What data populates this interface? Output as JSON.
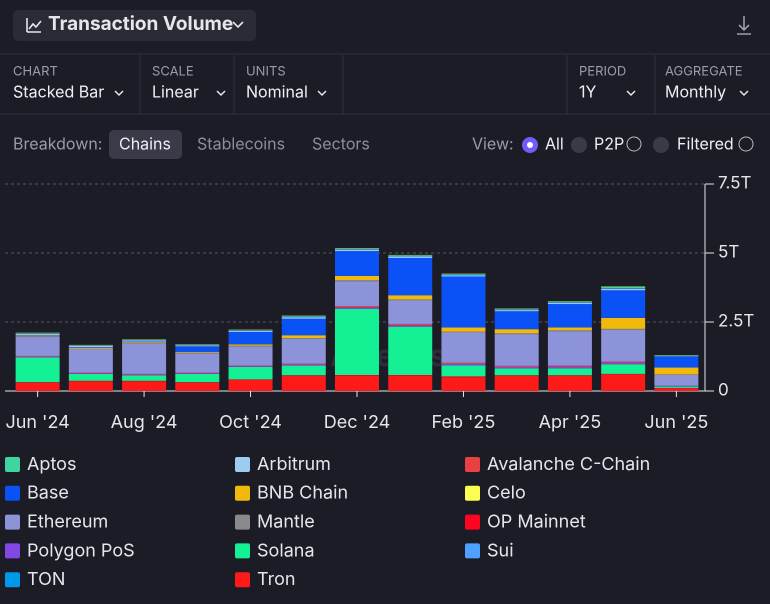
{
  "ui": {
    "title": "Transaction Volume",
    "controls": [
      {
        "label": "CHART",
        "value": "Stacked Bar"
      },
      {
        "label": "SCALE",
        "value": "Linear"
      },
      {
        "label": "UNITS",
        "value": "Nominal"
      },
      {
        "label": "PERIOD",
        "value": "1Y"
      },
      {
        "label": "AGGREGATE",
        "value": "Monthly"
      }
    ],
    "breakdown_label": "Breakdown:",
    "breakdown_tabs": [
      "Chains",
      "Stablecoins",
      "Sectors"
    ],
    "view_label": "View:",
    "view_options": [
      "All",
      "P2P",
      "Filtered"
    ],
    "watermark": "Artemis"
  },
  "chart_data": {
    "type": "stacked_bar",
    "categories": [
      "Jun '24",
      null,
      "Aug '24",
      null,
      "Oct '24",
      null,
      "Dec '24",
      null,
      "Feb '25",
      null,
      "Apr '25",
      null,
      "Jun '25"
    ],
    "ylim": [
      0,
      7.5
    ],
    "yticks": [
      0,
      {
        "value": 2.5,
        "label": "2.5T"
      },
      {
        "value": 5,
        "label": "5T"
      },
      {
        "value": 7.5,
        "label": "7.5T"
      }
    ],
    "grid": true,
    "series": [
      {
        "name": "Tron",
        "color": "#ff1a1a",
        "values": [
          0.3,
          0.35,
          0.35,
          0.3,
          0.4,
          0.55,
          0.55,
          0.55,
          0.5,
          0.55,
          0.55,
          0.6,
          0.1
        ]
      },
      {
        "name": "OP Mainnet",
        "color": "#ff0420",
        "values": [
          0.02,
          0.02,
          0.02,
          0.02,
          0.02,
          0.02,
          0.03,
          0.03,
          0.03,
          0.02,
          0.02,
          0.02,
          0.01
        ]
      },
      {
        "name": "Solana",
        "color": "#14f195",
        "values": [
          0.9,
          0.25,
          0.2,
          0.3,
          0.45,
          0.35,
          2.4,
          1.75,
          0.4,
          0.25,
          0.25,
          0.35,
          0.05
        ]
      },
      {
        "name": "Polygon PoS",
        "color": "#8247e5",
        "values": [
          0.03,
          0.03,
          0.03,
          0.03,
          0.03,
          0.04,
          0.05,
          0.05,
          0.05,
          0.05,
          0.06,
          0.06,
          0.02
        ]
      },
      {
        "name": "Avalanche C-Chain",
        "color": "#e84142",
        "values": [
          0.02,
          0.02,
          0.02,
          0.02,
          0.02,
          0.03,
          0.05,
          0.05,
          0.04,
          0.04,
          0.04,
          0.04,
          0.01
        ]
      },
      {
        "name": "Ethereum",
        "color": "#8c93d9",
        "values": [
          0.7,
          0.85,
          1.1,
          0.7,
          0.7,
          0.9,
          0.9,
          0.85,
          1.1,
          1.15,
          1.25,
          1.15,
          0.4
        ]
      },
      {
        "name": "Mantle",
        "color": "#8a8a8a",
        "values": [
          0.02,
          0.02,
          0.02,
          0.02,
          0.02,
          0.03,
          0.04,
          0.04,
          0.03,
          0.03,
          0.03,
          0.03,
          0.01
        ]
      },
      {
        "name": "BNB Chain",
        "color": "#f0b90b",
        "values": [
          0.02,
          0.03,
          0.03,
          0.03,
          0.05,
          0.1,
          0.15,
          0.15,
          0.15,
          0.15,
          0.1,
          0.4,
          0.25
        ]
      },
      {
        "name": "Base",
        "color": "#0a52f5",
        "values": [
          0.02,
          0.02,
          0.02,
          0.2,
          0.45,
          0.6,
          0.9,
          1.35,
          1.85,
          0.65,
          0.85,
          1.0,
          0.4
        ]
      },
      {
        "name": "Arbitrum",
        "color": "#9ecbf0",
        "values": [
          0.04,
          0.04,
          0.04,
          0.03,
          0.04,
          0.05,
          0.05,
          0.05,
          0.04,
          0.04,
          0.04,
          0.05,
          0.01
        ]
      },
      {
        "name": "Sui",
        "color": "#4da2ff",
        "values": [
          0.01,
          0.01,
          0.01,
          0.01,
          0.01,
          0.02,
          0.02,
          0.02,
          0.02,
          0.02,
          0.02,
          0.02,
          0.01
        ]
      },
      {
        "name": "TON",
        "color": "#0098ea",
        "values": [
          0.01,
          0.01,
          0.01,
          0.01,
          0.01,
          0.01,
          0.01,
          0.01,
          0.01,
          0.01,
          0.01,
          0.01,
          0.01
        ]
      },
      {
        "name": "Aptos",
        "color": "#3fd4a0",
        "values": [
          0.01,
          0.01,
          0.01,
          0.01,
          0.01,
          0.02,
          0.02,
          0.02,
          0.02,
          0.02,
          0.02,
          0.05,
          0.01
        ]
      },
      {
        "name": "Celo",
        "color": "#fcff52",
        "values": [
          0.01,
          0.01,
          0.01,
          0.01,
          0.01,
          0.01,
          0.01,
          0.01,
          0.01,
          0.01,
          0.01,
          0.01,
          0.01
        ]
      }
    ]
  }
}
